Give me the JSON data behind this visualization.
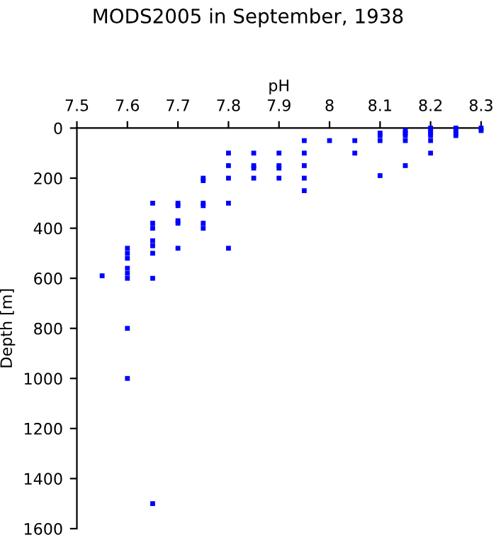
{
  "chart_data": {
    "type": "scatter",
    "title": "MODS2005 in September, 1938",
    "xlabel": "pH",
    "ylabel": "Depth [m]",
    "series": [
      {
        "color": "#0000ff",
        "x": [
          7.55,
          7.6,
          7.6,
          7.6,
          7.6,
          7.6,
          7.6,
          7.6,
          7.6,
          7.65,
          7.65,
          7.65,
          7.65,
          7.65,
          7.65,
          7.65,
          7.65,
          7.7,
          7.7,
          7.7,
          7.7,
          7.7,
          7.75,
          7.75,
          7.75,
          7.75,
          7.75,
          7.75,
          7.8,
          7.8,
          7.8,
          7.8,
          7.8,
          7.85,
          7.85,
          7.85,
          7.85,
          7.9,
          7.9,
          7.9,
          7.9,
          7.95,
          7.95,
          7.95,
          7.95,
          7.95,
          8.0,
          8.05,
          8.05,
          8.1,
          8.1,
          8.1,
          8.1,
          8.15,
          8.15,
          8.15,
          8.15,
          8.15,
          8.2,
          8.2,
          8.2,
          8.2,
          8.2,
          8.2,
          8.25,
          8.25,
          8.25,
          8.25,
          8.3,
          8.3
        ],
        "values": [
          590,
          480,
          500,
          520,
          560,
          580,
          600,
          800,
          1000,
          300,
          380,
          400,
          450,
          470,
          500,
          600,
          1500,
          300,
          310,
          370,
          380,
          480,
          200,
          210,
          300,
          310,
          380,
          400,
          100,
          150,
          200,
          300,
          480,
          100,
          150,
          160,
          200,
          100,
          150,
          160,
          200,
          50,
          100,
          150,
          200,
          250,
          50,
          50,
          100,
          20,
          30,
          50,
          190,
          10,
          20,
          30,
          50,
          150,
          0,
          10,
          20,
          30,
          50,
          100,
          0,
          10,
          20,
          30,
          0,
          10
        ]
      }
    ],
    "marker": "square",
    "xlim": [
      7.5,
      8.3
    ],
    "xticks": [
      7.5,
      7.6,
      7.7,
      7.8,
      7.9,
      8,
      8.1,
      8.2,
      8.3
    ],
    "ylim": [
      1600,
      0
    ],
    "yticks": [
      0,
      200,
      400,
      600,
      800,
      1000,
      1200,
      1400,
      1600
    ],
    "grid": false
  }
}
